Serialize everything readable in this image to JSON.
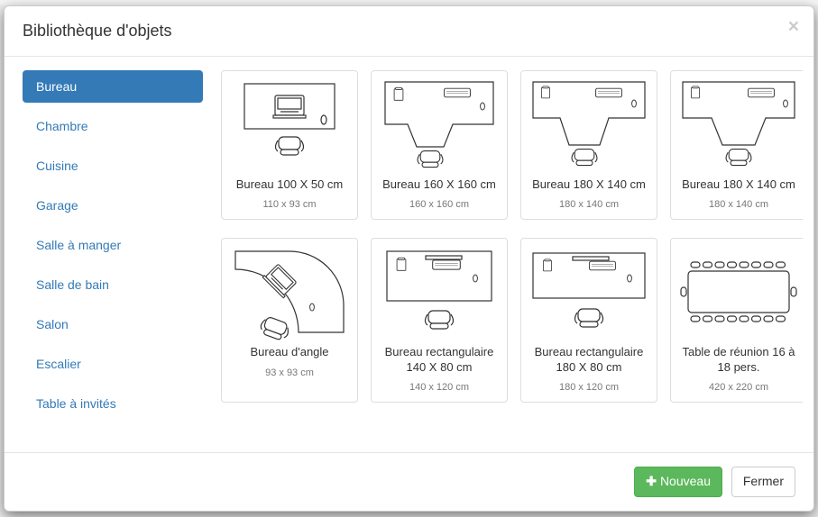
{
  "modal": {
    "title": "Bibliothèque d'objets",
    "close_glyph": "×"
  },
  "sidebar": {
    "items": [
      {
        "label": "Bureau",
        "active": true
      },
      {
        "label": "Chambre",
        "active": false
      },
      {
        "label": "Cuisine",
        "active": false
      },
      {
        "label": "Garage",
        "active": false
      },
      {
        "label": "Salle à manger",
        "active": false
      },
      {
        "label": "Salle de bain",
        "active": false
      },
      {
        "label": "Salon",
        "active": false
      },
      {
        "label": "Escalier",
        "active": false
      },
      {
        "label": "Table à invités",
        "active": false
      }
    ]
  },
  "gallery": {
    "items": [
      {
        "title": "Bureau 100 X 50 cm",
        "dim": "110 x 93 cm",
        "thumb": "desk-small"
      },
      {
        "title": "Bureau 160 X 160 cm",
        "dim": "160 x 160 cm",
        "thumb": "desk-L1"
      },
      {
        "title": "Bureau 180 X 140 cm",
        "dim": "180 x 140 cm",
        "thumb": "desk-L2"
      },
      {
        "title": "Bureau 180 X 140 cm",
        "dim": "180 x 140 cm",
        "thumb": "desk-L3"
      },
      {
        "title": "Bureau d'angle",
        "dim": "93 x 93 cm",
        "thumb": "desk-corner"
      },
      {
        "title": "Bureau rectangulaire 140 X 80 cm",
        "dim": "140 x 120 cm",
        "thumb": "desk-rect"
      },
      {
        "title": "Bureau rectangulaire 180 X 80 cm",
        "dim": "180 x 120 cm",
        "thumb": "desk-rect2"
      },
      {
        "title": "Table de réunion 16 à 18 pers.",
        "dim": "420 x 220 cm",
        "thumb": "table-meeting"
      }
    ]
  },
  "footer": {
    "new_label": "Nouveau",
    "close_label": "Fermer"
  },
  "style": {
    "accent": "#337ab7",
    "success": "#5cb85c",
    "card_border": "#dddddd",
    "text_muted": "#777777",
    "modal_title_fontsize": 18,
    "card_title_fontsize": 13,
    "card_dim_fontsize": 11
  }
}
